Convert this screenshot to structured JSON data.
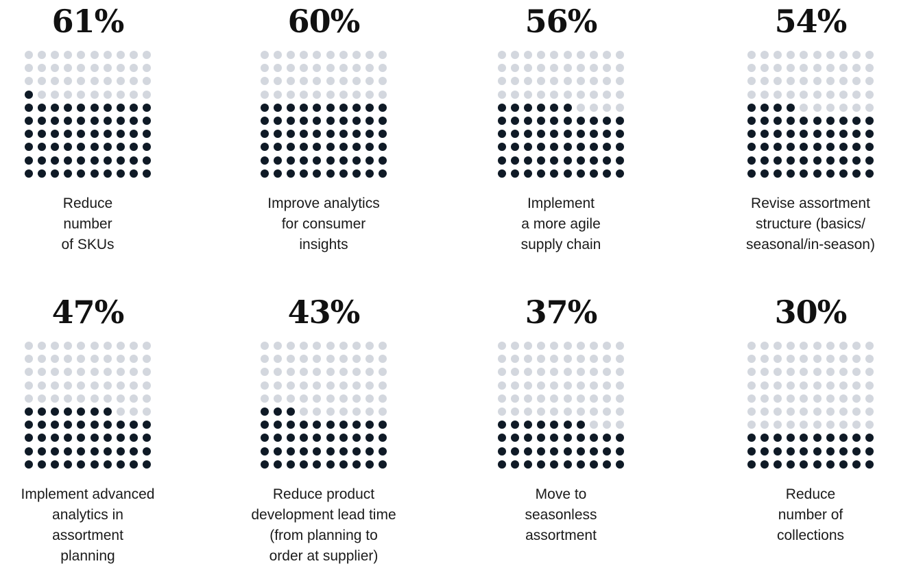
{
  "chart_data": {
    "type": "waffle",
    "grid": {
      "rows": 10,
      "cols": 10
    },
    "colors": {
      "filled": "#0f1a26",
      "empty": "#d3d7de"
    },
    "items": [
      {
        "value": 61,
        "value_label": "61%",
        "label_lines": [
          "Reduce",
          "number",
          "of SKUs"
        ]
      },
      {
        "value": 60,
        "value_label": "60%",
        "label_lines": [
          "Improve analytics",
          "for consumer",
          "insights"
        ]
      },
      {
        "value": 56,
        "value_label": "56%",
        "label_lines": [
          "Implement",
          "a more agile",
          "supply chain"
        ]
      },
      {
        "value": 54,
        "value_label": "54%",
        "label_lines": [
          "Revise assortment",
          "structure (basics/",
          "seasonal/in-season)"
        ]
      },
      {
        "value": 47,
        "value_label": "47%",
        "label_lines": [
          "Implement advanced",
          "analytics in",
          "assortment",
          "planning"
        ]
      },
      {
        "value": 43,
        "value_label": "43%",
        "label_lines": [
          "Reduce product",
          "development lead time",
          "(from planning to",
          "order at supplier)"
        ]
      },
      {
        "value": 37,
        "value_label": "37%",
        "label_lines": [
          "Move to",
          "seasonless",
          "assortment"
        ]
      },
      {
        "value": 30,
        "value_label": "30%",
        "label_lines": [
          "Reduce",
          "number of",
          "collections"
        ]
      }
    ]
  }
}
